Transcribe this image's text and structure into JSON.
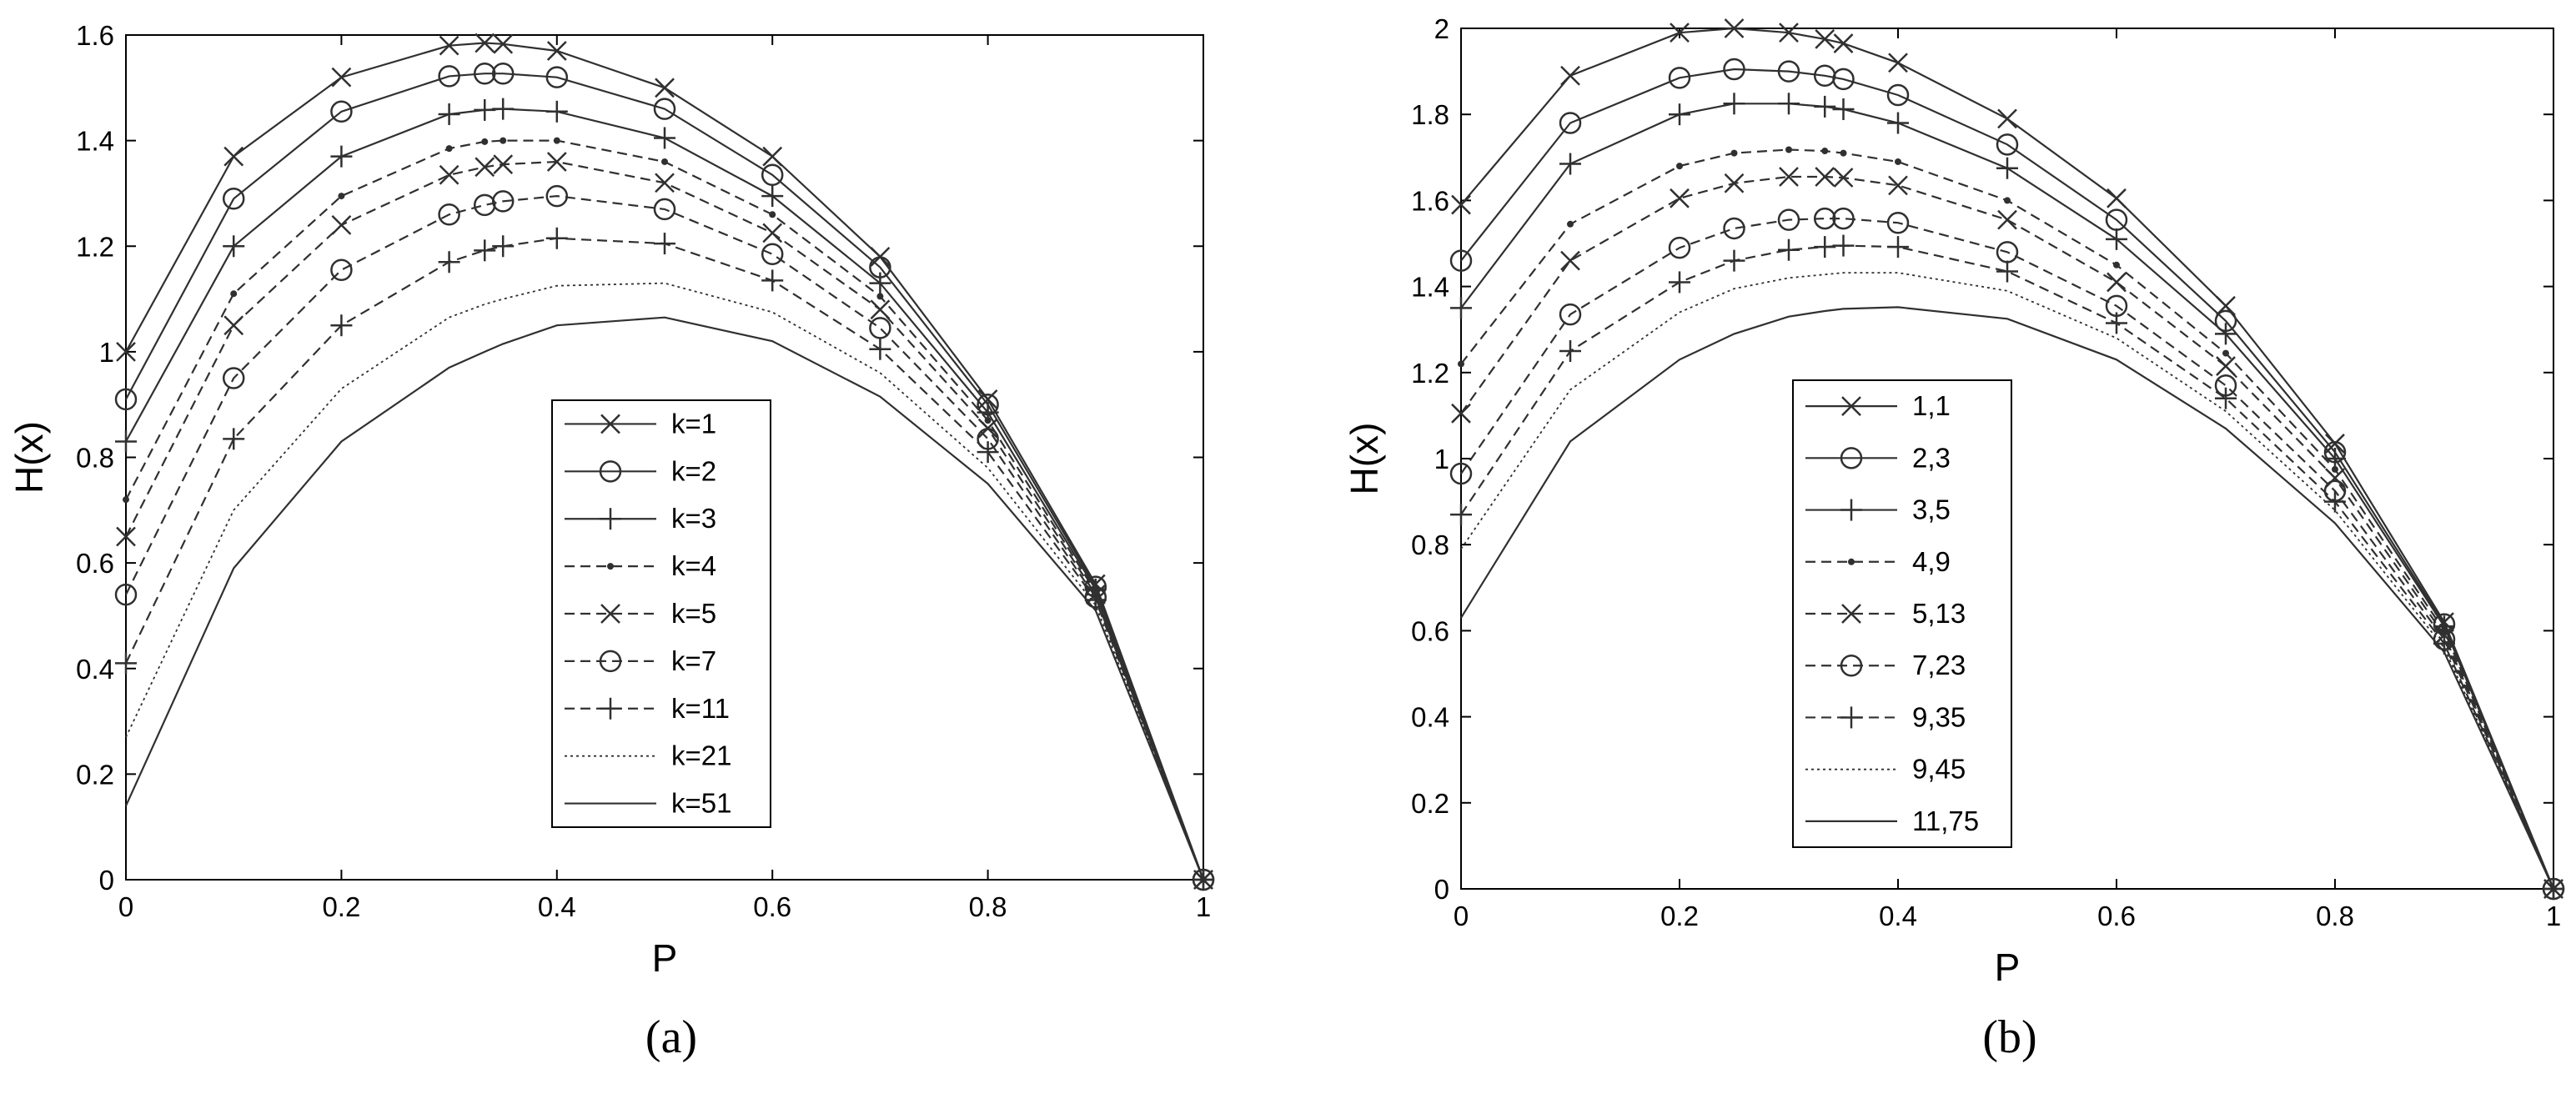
{
  "chart_data": [
    {
      "type": "line",
      "panel_label": "a",
      "xlabel": "P",
      "ylabel": "H(x)",
      "xlim": [
        0,
        1
      ],
      "ylim": [
        0,
        1.6
      ],
      "xticks": [
        "0",
        "0.2",
        "0.4",
        "0.6",
        "0.8",
        "1"
      ],
      "yticks": [
        "0",
        "0.2",
        "0.4",
        "0.6",
        "0.8",
        "1",
        "1.2",
        "1.4",
        "1.6"
      ],
      "grid": false,
      "legend_position": "center-right",
      "x": [
        0,
        0.1,
        0.2,
        0.3,
        0.333,
        0.35,
        0.4,
        0.5,
        0.6,
        0.7,
        0.8,
        0.9,
        1
      ],
      "series": [
        {
          "name": "k=1",
          "marker": "x",
          "dash": "solid",
          "values": [
            1.0,
            1.37,
            1.52,
            1.58,
            1.585,
            1.583,
            1.57,
            1.5,
            1.37,
            1.18,
            0.91,
            0.56,
            0
          ]
        },
        {
          "name": "k=2",
          "marker": "o",
          "dash": "solid",
          "values": [
            0.91,
            1.29,
            1.455,
            1.522,
            1.527,
            1.527,
            1.52,
            1.46,
            1.335,
            1.16,
            0.9,
            0.555,
            0
          ]
        },
        {
          "name": "k=3",
          "marker": "+",
          "dash": "solid",
          "values": [
            0.83,
            1.2,
            1.37,
            1.45,
            1.458,
            1.46,
            1.455,
            1.405,
            1.295,
            1.13,
            0.885,
            0.55,
            0
          ]
        },
        {
          "name": "k=4",
          "marker": "dot",
          "dash": "dashed",
          "values": [
            0.72,
            1.11,
            1.295,
            1.385,
            1.398,
            1.4,
            1.4,
            1.36,
            1.26,
            1.105,
            0.87,
            0.545,
            0
          ]
        },
        {
          "name": "k=5",
          "marker": "x",
          "dash": "dashed",
          "values": [
            0.65,
            1.05,
            1.24,
            1.335,
            1.35,
            1.355,
            1.36,
            1.32,
            1.225,
            1.08,
            0.855,
            0.54,
            0
          ]
        },
        {
          "name": "k=7",
          "marker": "o",
          "dash": "dashed",
          "values": [
            0.54,
            0.95,
            1.155,
            1.26,
            1.278,
            1.285,
            1.295,
            1.27,
            1.185,
            1.045,
            0.835,
            0.535,
            0
          ]
        },
        {
          "name": "k=11",
          "marker": "+",
          "dash": "dashed",
          "values": [
            0.41,
            0.835,
            1.05,
            1.17,
            1.192,
            1.2,
            1.215,
            1.205,
            1.135,
            1.005,
            0.81,
            0.53,
            0
          ]
        },
        {
          "name": "k=21",
          "marker": "none",
          "dash": "dotted",
          "values": [
            0.27,
            0.7,
            0.93,
            1.065,
            1.09,
            1.1,
            1.125,
            1.13,
            1.075,
            0.96,
            0.78,
            0.52,
            0
          ]
        },
        {
          "name": "k=51",
          "marker": "none",
          "dash": "solid",
          "values": [
            0.14,
            0.59,
            0.83,
            0.97,
            1.0,
            1.015,
            1.05,
            1.065,
            1.02,
            0.915,
            0.75,
            0.51,
            0
          ]
        }
      ]
    },
    {
      "type": "line",
      "panel_label": "b",
      "xlabel": "P",
      "ylabel": "H(x)",
      "xlim": [
        0,
        1
      ],
      "ylim": [
        0,
        2
      ],
      "xticks": [
        "0",
        "0.2",
        "0.4",
        "0.6",
        "0.8",
        "1"
      ],
      "yticks": [
        "0",
        "0.2",
        "0.4",
        "0.6",
        "0.8",
        "1",
        "1.2",
        "1.4",
        "1.6",
        "1.8",
        "2"
      ],
      "grid": false,
      "legend_position": "center-left",
      "x": [
        0,
        0.1,
        0.2,
        0.25,
        0.3,
        0.333,
        0.35,
        0.4,
        0.5,
        0.6,
        0.7,
        0.8,
        0.9,
        1
      ],
      "series": [
        {
          "name": "1,1",
          "marker": "x",
          "dash": "solid",
          "values": [
            1.59,
            1.89,
            1.99,
            2.0,
            1.99,
            1.975,
            1.965,
            1.92,
            1.79,
            1.605,
            1.355,
            1.035,
            0.62,
            0
          ]
        },
        {
          "name": "2,3",
          "marker": "o",
          "dash": "solid",
          "values": [
            1.46,
            1.78,
            1.885,
            1.905,
            1.9,
            1.89,
            1.882,
            1.845,
            1.73,
            1.555,
            1.32,
            1.015,
            0.615,
            0
          ]
        },
        {
          "name": "3,5",
          "marker": "+",
          "dash": "solid",
          "values": [
            1.35,
            1.685,
            1.8,
            1.825,
            1.825,
            1.818,
            1.812,
            1.78,
            1.675,
            1.51,
            1.29,
            1.0,
            0.61,
            0
          ]
        },
        {
          "name": "4,9",
          "marker": "dot",
          "dash": "dashed",
          "values": [
            1.22,
            1.545,
            1.68,
            1.71,
            1.718,
            1.715,
            1.71,
            1.69,
            1.6,
            1.45,
            1.245,
            0.975,
            0.6,
            0
          ]
        },
        {
          "name": "5,13",
          "marker": "x",
          "dash": "dashed",
          "values": [
            1.105,
            1.46,
            1.605,
            1.64,
            1.655,
            1.655,
            1.653,
            1.635,
            1.555,
            1.41,
            1.215,
            0.955,
            0.59,
            0
          ]
        },
        {
          "name": "7,23",
          "marker": "o",
          "dash": "dashed",
          "values": [
            0.965,
            1.335,
            1.49,
            1.535,
            1.555,
            1.558,
            1.558,
            1.548,
            1.48,
            1.355,
            1.17,
            0.925,
            0.58,
            0
          ]
        },
        {
          "name": "9,35",
          "marker": "+",
          "dash": "dashed",
          "values": [
            0.87,
            1.25,
            1.41,
            1.46,
            1.485,
            1.492,
            1.495,
            1.492,
            1.435,
            1.315,
            1.14,
            0.9,
            0.57,
            0
          ]
        },
        {
          "name": "9,45",
          "marker": "none",
          "dash": "dotted",
          "values": [
            0.79,
            1.16,
            1.34,
            1.395,
            1.42,
            1.428,
            1.432,
            1.432,
            1.39,
            1.28,
            1.11,
            0.88,
            0.56,
            0
          ]
        },
        {
          "name": "11,75",
          "marker": "none",
          "dash": "solid",
          "values": [
            0.63,
            1.04,
            1.23,
            1.29,
            1.33,
            1.343,
            1.348,
            1.352,
            1.325,
            1.23,
            1.07,
            0.85,
            0.55,
            0
          ]
        }
      ]
    }
  ],
  "captions": {
    "a": "(a)",
    "b": "(b)"
  }
}
